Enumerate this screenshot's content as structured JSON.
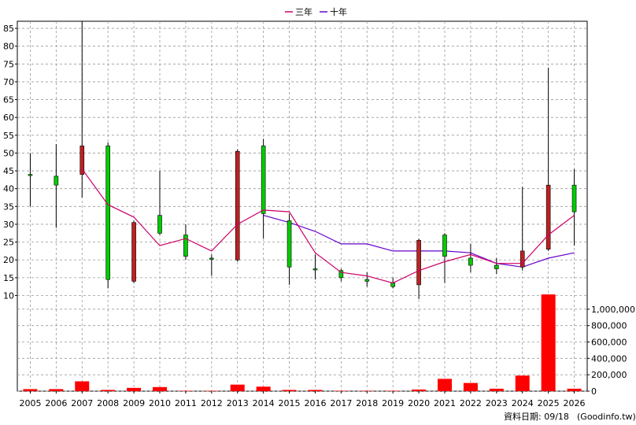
{
  "legend": {
    "items": [
      {
        "label": "三年",
        "color": "#cc0066"
      },
      {
        "label": "十年",
        "color": "#6600cc"
      }
    ]
  },
  "footer": {
    "date_note": "資料日期: 09/18",
    "source": "(Goodinfo.tw)"
  },
  "chart_data": {
    "type": "candlestick",
    "categories": [
      "2005",
      "2006",
      "2007",
      "2008",
      "2009",
      "2010",
      "2011",
      "2012",
      "2013",
      "2014",
      "2015",
      "2016",
      "2017",
      "2018",
      "2019",
      "2020",
      "2021",
      "2022",
      "2023",
      "2024",
      "2025",
      "2026"
    ],
    "price_axis": {
      "ylim": [
        9,
        87
      ],
      "ticks": [
        10,
        15,
        20,
        25,
        30,
        35,
        40,
        45,
        50,
        55,
        60,
        65,
        70,
        75,
        80,
        85
      ]
    },
    "volume_axis": {
      "ylim": [
        0,
        1200000
      ],
      "ticks": [
        0,
        200000,
        400000,
        600000,
        800000,
        1000000
      ],
      "tick_labels": [
        "0",
        "200,000",
        "400,000",
        "600,000",
        "800,000",
        "1,000,000"
      ]
    },
    "colors": {
      "up": "#00cc00",
      "down": "#bb2222",
      "volume": "#ff0000",
      "grid": "#999999"
    },
    "candles": [
      {
        "open": 44,
        "close": 44,
        "high": 50,
        "low": 35
      },
      {
        "open": 41,
        "close": 43.5,
        "high": 52.5,
        "low": 29
      },
      {
        "open": 52,
        "close": 44,
        "high": 87,
        "low": 37.5
      },
      {
        "open": 14.5,
        "close": 52,
        "high": 53,
        "low": 12
      },
      {
        "open": 30.5,
        "close": 14,
        "high": 31,
        "low": 13.5
      },
      {
        "open": 27.5,
        "close": 32.5,
        "high": 45,
        "low": 27
      },
      {
        "open": 21,
        "close": 27,
        "high": 30,
        "low": 20
      },
      {
        "open": 20.5,
        "close": 20.5,
        "high": 21.5,
        "low": 15.5
      },
      {
        "open": 50.5,
        "close": 20,
        "high": 51,
        "low": 19.5
      },
      {
        "open": 33,
        "close": 52,
        "high": 54,
        "low": 26
      },
      {
        "open": 18,
        "close": 31,
        "high": 33,
        "low": 13
      },
      {
        "open": 17.5,
        "close": 17.5,
        "high": 21.5,
        "low": 14.5
      },
      {
        "open": 15,
        "close": 17,
        "high": 17.5,
        "low": 14
      },
      {
        "open": 14,
        "close": 14.5,
        "high": 16.5,
        "low": 12.5
      },
      {
        "open": 12.5,
        "close": 13.5,
        "high": 15,
        "low": 12
      },
      {
        "open": 25.5,
        "close": 13,
        "high": 26,
        "low": 9
      },
      {
        "open": 21,
        "close": 27,
        "high": 27.5,
        "low": 13.5
      },
      {
        "open": 18.5,
        "close": 20.5,
        "high": 24.5,
        "low": 16.5
      },
      {
        "open": 17.5,
        "close": 18.5,
        "high": 20.5,
        "low": 16
      },
      {
        "open": 22.5,
        "close": 18,
        "high": 40.5,
        "low": 17
      },
      {
        "open": 41,
        "close": 23,
        "high": 74,
        "low": 22.5
      },
      {
        "open": 33.5,
        "close": 41,
        "high": 45.5,
        "low": 24
      }
    ],
    "series": [
      {
        "name": "三年",
        "values": [
          null,
          null,
          45.5,
          35.5,
          32,
          24,
          26,
          22.5,
          30,
          34,
          33.5,
          22,
          16.5,
          15.5,
          13.5,
          17,
          19.5,
          21.5,
          19,
          19,
          27,
          32.5
        ]
      },
      {
        "name": "十年",
        "values": [
          null,
          null,
          null,
          null,
          null,
          null,
          null,
          null,
          null,
          null,
          null,
          null,
          null,
          null,
          null,
          null,
          null,
          null,
          null,
          null,
          null,
          null
        ]
      }
    ],
    "ten_year": [
      null,
      null,
      null,
      null,
      null,
      null,
      null,
      null,
      null,
      32.5,
      30.5,
      28,
      24.5,
      24.5,
      22.5,
      22.5,
      22.5,
      22,
      19,
      18,
      20.5,
      22
    ],
    "volume": [
      25000,
      25000,
      120000,
      15000,
      40000,
      50000,
      5000,
      5000,
      80000,
      55000,
      15000,
      15000,
      5000,
      5000,
      5000,
      20000,
      150000,
      100000,
      30000,
      190000,
      1180000,
      30000
    ]
  }
}
